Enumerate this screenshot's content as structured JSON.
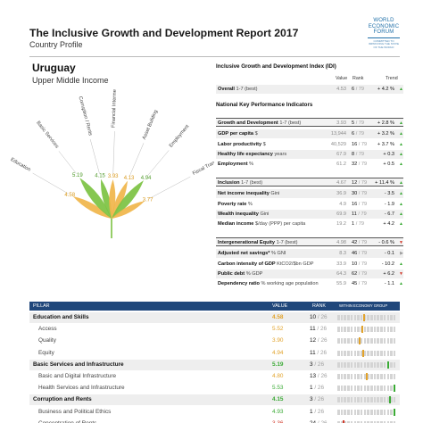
{
  "header": {
    "title": "The Inclusive Growth and Development Report 2017",
    "subtitle": "Country Profile",
    "logo_lines": [
      "WORLD",
      "ECONOMIC",
      "FORUM"
    ],
    "logo_tagline": [
      "COMMITTED TO",
      "IMPROVING THE STATE",
      "OF THE WORLD"
    ]
  },
  "country": {
    "name": "Uruguay",
    "income_group": "Upper Middle Income"
  },
  "radial": {
    "center_label": "Uruguay",
    "pillars": [
      {
        "name": "Education",
        "value": "4.58",
        "color": "#f0b54a"
      },
      {
        "name": "Basic Services",
        "value": "5.19",
        "color": "#7cc242"
      },
      {
        "name": "Corruption / Rents",
        "value": "4.15",
        "color": "#7cc242"
      },
      {
        "name": "Financial Intermediation",
        "value": "3.93",
        "color": "#f0b54a"
      },
      {
        "name": "Asset Building",
        "value": "4.13",
        "color": "#f0b54a"
      },
      {
        "name": "Employment",
        "value": "4.94",
        "color": "#7cc242"
      },
      {
        "name": "Fiscal Transfers",
        "value": "3.77",
        "color": "#f0b54a"
      }
    ]
  },
  "idi": {
    "title": "Inclusive Growth and Development Index (IDI)",
    "col_value": "Value",
    "col_rank": "Rank",
    "col_trend": "Trend",
    "overall": {
      "label": "Overall",
      "unit": "1-7 (best)",
      "value": "4.53",
      "rank": "6",
      "of": "/ 79",
      "trend": "+ 4.2 %",
      "dir": "up"
    }
  },
  "kpi": {
    "title": "National Key Performance Indicators",
    "growth": [
      {
        "label": "Growth and Development",
        "unit": "1-7 (best)",
        "value": "3.93",
        "rank": "5",
        "of": "/ 79",
        "trend": "+ 2.8 %",
        "dir": "up",
        "style": "box"
      },
      {
        "label": "GDP per capita",
        "unit": "$",
        "value": "13,944",
        "rank": "6",
        "of": "/ 79",
        "trend": "+ 3.2 %",
        "dir": "up"
      },
      {
        "label": "Labor productivity",
        "unit": "$",
        "value": "40,529",
        "rank": "16",
        "of": "/ 79",
        "trend": "+ 3.7 %",
        "dir": "up"
      },
      {
        "label": "Healthy life expectancy",
        "unit": "years",
        "value": "67.9",
        "rank": "8",
        "of": "/ 79",
        "trend": "+ 0.3",
        "dir": "up"
      },
      {
        "label": "Employment",
        "unit": "%",
        "value": "61.2",
        "rank": "32",
        "of": "/ 79",
        "trend": "+ 0.5",
        "dir": "up"
      }
    ],
    "inclusion": [
      {
        "label": "Inclusion",
        "unit": "1-7 (best)",
        "value": "4.67",
        "rank": "12",
        "of": "/ 79",
        "trend": "+ 11.4 %",
        "dir": "up",
        "style": "box"
      },
      {
        "label": "Net income inequality",
        "unit": "Gini",
        "value": "36.9",
        "rank": "30",
        "of": "/ 79",
        "trend": "- 3.5",
        "dir": "up"
      },
      {
        "label": "Poverty rate",
        "unit": "%",
        "value": "4.9",
        "rank": "16",
        "of": "/ 79",
        "trend": "- 1.9",
        "dir": "up"
      },
      {
        "label": "Wealth inequality",
        "unit": "Gini",
        "value": "69.9",
        "rank": "11",
        "of": "/ 79",
        "trend": "- 6.7",
        "dir": "up"
      },
      {
        "label": "Median income",
        "unit": "$/day (PPP) per capita",
        "value": "19.2",
        "rank": "1",
        "of": "/ 79",
        "trend": "+ 4.2",
        "dir": "up"
      }
    ],
    "equity": [
      {
        "label": "Intergenerational Equity",
        "unit": "1-7 (best)",
        "value": "4.98",
        "rank": "42",
        "of": "/ 79",
        "trend": "- 0.6 %",
        "dir": "down",
        "style": "box"
      },
      {
        "label": "Adjusted net savings*",
        "unit": "% GNI",
        "value": "8.3",
        "rank": "46",
        "of": "/ 79",
        "trend": "- 0.1",
        "dir": "flat"
      },
      {
        "label": "Carbon intensity of GDP",
        "unit": "KtCO2/$bn GDP",
        "value": "33.9",
        "rank": "10",
        "of": "/ 79",
        "trend": "- 10.2",
        "dir": "up"
      },
      {
        "label": "Public debt",
        "unit": "% GDP",
        "value": "64.3",
        "rank": "62",
        "of": "/ 79",
        "trend": "+ 6.2",
        "dir": "down"
      },
      {
        "label": "Dependency ratio",
        "unit": "% working age population",
        "value": "55.9",
        "rank": "45",
        "of": "/ 79",
        "trend": "- 1.1",
        "dir": "up"
      }
    ]
  },
  "pillar_table": {
    "col_pillar": "PILLAR",
    "col_value": "VALUE",
    "col_rank": "RANK",
    "col_group": "WITHIN ECONOMY GROUP",
    "rows": [
      {
        "name": "Education and Skills",
        "value": "4.58",
        "rank": "10",
        "of": "/ 26",
        "kind": "main",
        "color": "#e2a32b",
        "pos": 0.45
      },
      {
        "name": "Access",
        "value": "5.52",
        "rank": "11",
        "of": "/ 26",
        "kind": "sub",
        "color": "#e2a32b",
        "pos": 0.42
      },
      {
        "name": "Quality",
        "value": "3.90",
        "rank": "12",
        "of": "/ 26",
        "kind": "sub",
        "color": "#e2a32b",
        "pos": 0.38
      },
      {
        "name": "Equity",
        "value": "4.94",
        "rank": "11",
        "of": "/ 26",
        "kind": "sub",
        "color": "#e2a32b",
        "pos": 0.44
      },
      {
        "name": "Basic Services and Infrastructure",
        "value": "5.19",
        "rank": "3",
        "of": "/ 26",
        "kind": "main",
        "color": "#3aaa35",
        "pos": 0.88
      },
      {
        "name": "Basic and Digital Infrastructure",
        "value": "4.80",
        "rank": "13",
        "of": "/ 26",
        "kind": "sub",
        "color": "#e2a32b",
        "pos": 0.5
      },
      {
        "name": "Health Services and Infrastructure",
        "value": "5.53",
        "rank": "1",
        "of": "/ 26",
        "kind": "sub",
        "color": "#3aaa35",
        "pos": 0.98
      },
      {
        "name": "Corruption and Rents",
        "value": "4.15",
        "rank": "3",
        "of": "/ 26",
        "kind": "main",
        "color": "#3aaa35",
        "pos": 0.9
      },
      {
        "name": "Business and Political Ethics",
        "value": "4.93",
        "rank": "1",
        "of": "/ 26",
        "kind": "sub",
        "color": "#3aaa35",
        "pos": 0.98
      },
      {
        "name": "Concentration of Rents",
        "value": "3.36",
        "rank": "24",
        "of": "/ 26",
        "kind": "sub",
        "color": "#d23b2c",
        "pos": 0.1
      }
    ]
  }
}
